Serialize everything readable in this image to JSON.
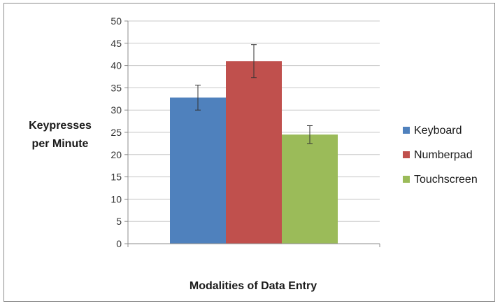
{
  "chart_data": {
    "type": "bar",
    "title": "",
    "xlabel": "Modalities of Data Entry",
    "ylabel_lines": [
      "Keypresses",
      "per Minute"
    ],
    "ylim": [
      0,
      50
    ],
    "yticks": [
      "0",
      "5",
      "10",
      "15",
      "20",
      "25",
      "30",
      "35",
      "40",
      "45",
      "50"
    ],
    "grid": true,
    "legend_position": "right",
    "series": [
      {
        "name": "Keyboard",
        "value": 32.8,
        "error": 2.8,
        "color": "#4f81bd"
      },
      {
        "name": "Numberpad",
        "value": 41.0,
        "error": 3.7,
        "color": "#c0504d"
      },
      {
        "name": "Touchscreen",
        "value": 24.5,
        "error": 2.0,
        "color": "#9bbb59"
      }
    ]
  }
}
